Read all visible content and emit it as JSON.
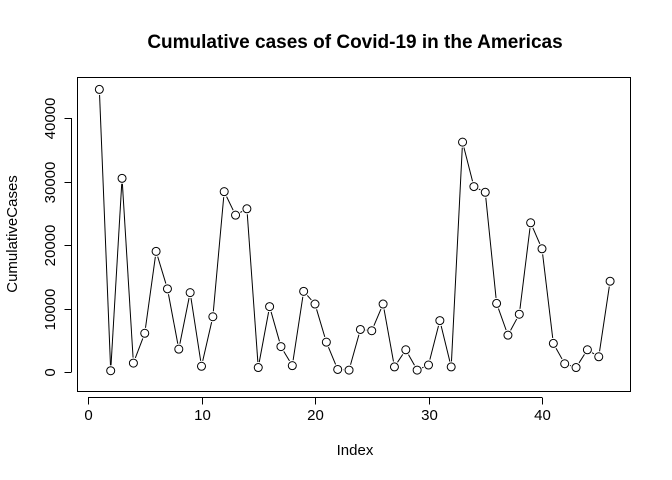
{
  "chart_data": {
    "type": "line",
    "title": "Cumulative cases of Covid-19 in the Americas",
    "xlabel": "Index",
    "ylabel": "CumulativeCases",
    "xlim": [
      0,
      47
    ],
    "ylim": [
      0,
      46000
    ],
    "x_ticks": [
      0,
      10,
      20,
      30,
      40
    ],
    "y_ticks": [
      0,
      10000,
      20000,
      30000,
      40000
    ],
    "grid": false,
    "legend": "none",
    "marker": "open-circle",
    "series": [
      {
        "x": [
          1,
          2,
          3,
          4,
          5,
          6,
          7,
          8,
          9,
          10,
          11,
          12,
          13,
          14,
          15,
          16,
          17,
          18,
          19,
          20,
          21,
          22,
          23,
          24,
          25,
          26,
          27,
          28,
          29,
          30,
          31,
          32,
          33,
          34,
          35,
          36,
          37,
          38,
          39,
          40,
          41,
          42,
          43,
          44,
          45,
          46
        ],
        "values": [
          44500,
          200,
          30500,
          1400,
          6100,
          19000,
          13100,
          3600,
          12500,
          900,
          8700,
          28400,
          24700,
          25700,
          700,
          10300,
          4000,
          1000,
          12700,
          10700,
          4700,
          400,
          300,
          6700,
          6500,
          10700,
          800,
          3500,
          300,
          1100,
          8100,
          800,
          36200,
          29200,
          28300,
          10800,
          5800,
          9100,
          23500,
          19400,
          4500,
          1300,
          700,
          3500,
          2400,
          14300
        ]
      }
    ]
  }
}
